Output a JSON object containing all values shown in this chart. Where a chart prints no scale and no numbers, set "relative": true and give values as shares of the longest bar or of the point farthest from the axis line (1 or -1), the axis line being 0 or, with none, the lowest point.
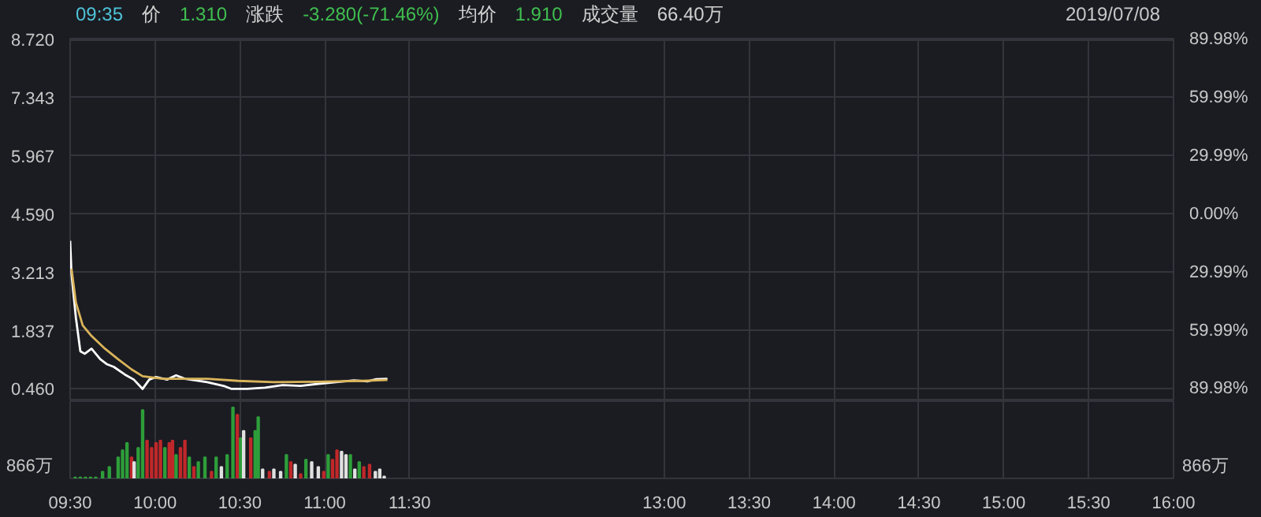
{
  "chart_data": [
    {
      "type": "line",
      "annotations": [
        "09:35",
        "价",
        "1.310",
        "涨跌",
        "-3.280(-71.46%)",
        "均价",
        "1.910",
        "成交量",
        "66.40万",
        "2019/07/08"
      ],
      "series": [
        {
          "color": "#ffffff",
          "x": [
            9.5,
            9.508,
            9.534,
            9.56,
            9.586,
            9.626,
            9.678,
            9.718,
            9.757,
            9.822,
            9.875,
            9.927,
            9.966,
            10.006,
            10.071,
            10.124,
            10.176,
            10.307,
            10.412,
            10.451,
            10.543,
            10.648,
            10.752,
            10.858,
            10.962,
            11.067,
            11.172,
            11.251,
            11.303,
            11.369
          ],
          "values": [
            3.96,
            3.17,
            2.14,
            1.35,
            1.29,
            1.41,
            1.16,
            1.04,
            0.98,
            0.8,
            0.68,
            0.46,
            0.68,
            0.74,
            0.68,
            0.78,
            0.7,
            0.62,
            0.52,
            0.46,
            0.46,
            0.49,
            0.55,
            0.53,
            0.58,
            0.62,
            0.66,
            0.64,
            0.69,
            0.7
          ]
        },
        {
          "color": "#d9b45a",
          "x": [
            9.508,
            9.534,
            9.574,
            9.626,
            9.705,
            9.783,
            9.862,
            9.927,
            10.045,
            10.307,
            10.491,
            10.7,
            10.962,
            11.224,
            11.369
          ],
          "values": [
            3.3,
            2.5,
            1.96,
            1.71,
            1.41,
            1.16,
            0.92,
            0.76,
            0.7,
            0.7,
            0.65,
            0.62,
            0.63,
            0.65,
            0.67
          ]
        }
      ],
      "xlim": [
        9.5,
        16
      ],
      "xticks": [
        {
          "value": 9.5,
          "label": null
        },
        {
          "value": 10,
          "label": null
        },
        {
          "value": 10.5,
          "label": null
        },
        {
          "value": 11,
          "label": null
        },
        {
          "value": 11.5,
          "label": null
        },
        {
          "value": 13,
          "label": null
        },
        {
          "value": 13.5,
          "label": null
        },
        {
          "value": 14,
          "label": null
        },
        {
          "value": 14.5,
          "label": null
        },
        {
          "value": 15,
          "label": null
        },
        {
          "value": 15.5,
          "label": null
        },
        {
          "value": 16,
          "label": null
        }
      ],
      "ylim": [
        0.17,
        8.74
      ],
      "yticks": [
        {
          "value": 8.72,
          "label": "8.720"
        },
        {
          "value": 7.343,
          "label": "7.343"
        },
        {
          "value": 5.967,
          "label": "5.967"
        },
        {
          "value": 4.59,
          "label": "4.590"
        },
        {
          "value": 3.213,
          "label": "3.213"
        },
        {
          "value": 1.837,
          "label": "1.837"
        },
        {
          "value": 0.46,
          "label": "0.460"
        }
      ],
      "y2lim": [
        -96.3,
        90.41
      ],
      "y2ticks": [
        {
          "value": 89.98,
          "label": "89.98%"
        },
        {
          "value": 59.99,
          "label": "59.99%"
        },
        {
          "value": 29.99,
          "label": "29.99%"
        },
        {
          "value": 0,
          "label": "0.00%"
        },
        {
          "value": -29.99,
          "label": "29.99%"
        },
        {
          "value": -59.99,
          "label": "59.99%"
        },
        {
          "value": -89.98,
          "label": "89.98%"
        }
      ],
      "grid": true,
      "tick_labels": "y"
    },
    {
      "type": "bar",
      "relative": true,
      "annotations": [
        "866万",
        "866万"
      ],
      "x": [
        9.53,
        9.56,
        9.59,
        9.62,
        9.65,
        9.691,
        9.731,
        9.783,
        9.809,
        9.835,
        9.862,
        9.877,
        9.901,
        9.927,
        9.953,
        9.98,
        10.006,
        10.032,
        10.058,
        10.084,
        10.103,
        10.124,
        10.15,
        10.176,
        10.202,
        10.229,
        10.255,
        10.294,
        10.333,
        10.36,
        10.391,
        10.425,
        10.459,
        10.485,
        10.504,
        10.522,
        10.564,
        10.59,
        10.608,
        10.634,
        10.674,
        10.7,
        10.74,
        10.774,
        10.8,
        10.826,
        10.858,
        10.889,
        10.923,
        10.962,
        10.994,
        11.02,
        11.046,
        11.072,
        11.099,
        11.125,
        11.151,
        11.177,
        11.203,
        11.23,
        11.264,
        11.298,
        11.324,
        11.35
      ],
      "values": [
        0.014,
        0.014,
        0.014,
        0.014,
        0.014,
        0.095,
        0.162,
        0.297,
        0.399,
        0.5,
        0.297,
        0.23,
        0.432,
        0.966,
        0.534,
        0.432,
        0.5,
        0.534,
        0.432,
        0.5,
        0.534,
        0.331,
        0.432,
        0.534,
        0.297,
        0.162,
        0.23,
        0.297,
        0.095,
        0.297,
        0.162,
        0.331,
        1,
        0.899,
        0.568,
        0.669,
        0.568,
        0.669,
        0.865,
        0.128,
        0.095,
        0.128,
        0.095,
        0.331,
        0.23,
        0.196,
        0.061,
        0.264,
        0.23,
        0.162,
        0.095,
        0.331,
        0.264,
        0.399,
        0.378,
        0.331,
        0.331,
        0.128,
        0.23,
        0.162,
        0.196,
        0.095,
        0.128,
        0.027
      ],
      "colors": [
        "#2e9e3a",
        "#2e9e3a",
        "#2e9e3a",
        "#2e9e3a",
        "#2e9e3a",
        "#2e9e3a",
        "#2e9e3a",
        "#2e9e3a",
        "#2e9e3a",
        "#2e9e3a",
        "#c0282a",
        "#e0e0e0",
        "#2e9e3a",
        "#2e9e3a",
        "#c0282a",
        "#c0282a",
        "#c0282a",
        "#c0282a",
        "#2e9e3a",
        "#c0282a",
        "#c0282a",
        "#2e9e3a",
        "#c0282a",
        "#c0282a",
        "#2e9e3a",
        "#c0282a",
        "#2e9e3a",
        "#2e9e3a",
        "#c0282a",
        "#2e9e3a",
        "#e0e0e0",
        "#2e9e3a",
        "#2e9e3a",
        "#c0282a",
        "#2e9e3a",
        "#e0e0e0",
        "#c0282a",
        "#2e9e3a",
        "#2e9e3a",
        "#e0e0e0",
        "#c0282a",
        "#e0e0e0",
        "#e0e0e0",
        "#2e9e3a",
        "#c0282a",
        "#e0e0e0",
        "#c0282a",
        "#2e9e3a",
        "#e0e0e0",
        "#e0e0e0",
        "#c0282a",
        "#2e9e3a",
        "#c0282a",
        "#c0282a",
        "#e0e0e0",
        "#e0e0e0",
        "#2e9e3a",
        "#e0e0e0",
        "#2e9e3a",
        "#c0282a",
        "#c0282a",
        "#e0e0e0",
        "#e0e0e0",
        "#e0e0e0"
      ],
      "xlim": [
        9.5,
        16
      ],
      "xticks": [
        {
          "value": 9.5,
          "label": "09:30"
        },
        {
          "value": 10,
          "label": "10:00"
        },
        {
          "value": 10.5,
          "label": "10:30"
        },
        {
          "value": 11,
          "label": "11:00"
        },
        {
          "value": 11.5,
          "label": "11:30"
        },
        {
          "value": 13,
          "label": "13:00"
        },
        {
          "value": 13.5,
          "label": "13:30"
        },
        {
          "value": 14,
          "label": "14:00"
        },
        {
          "value": 14.5,
          "label": "14:30"
        },
        {
          "value": 15,
          "label": "15:00"
        },
        {
          "value": 15.5,
          "label": "15:30"
        },
        {
          "value": 16,
          "label": "16:00"
        }
      ],
      "grid": "x"
    }
  ]
}
